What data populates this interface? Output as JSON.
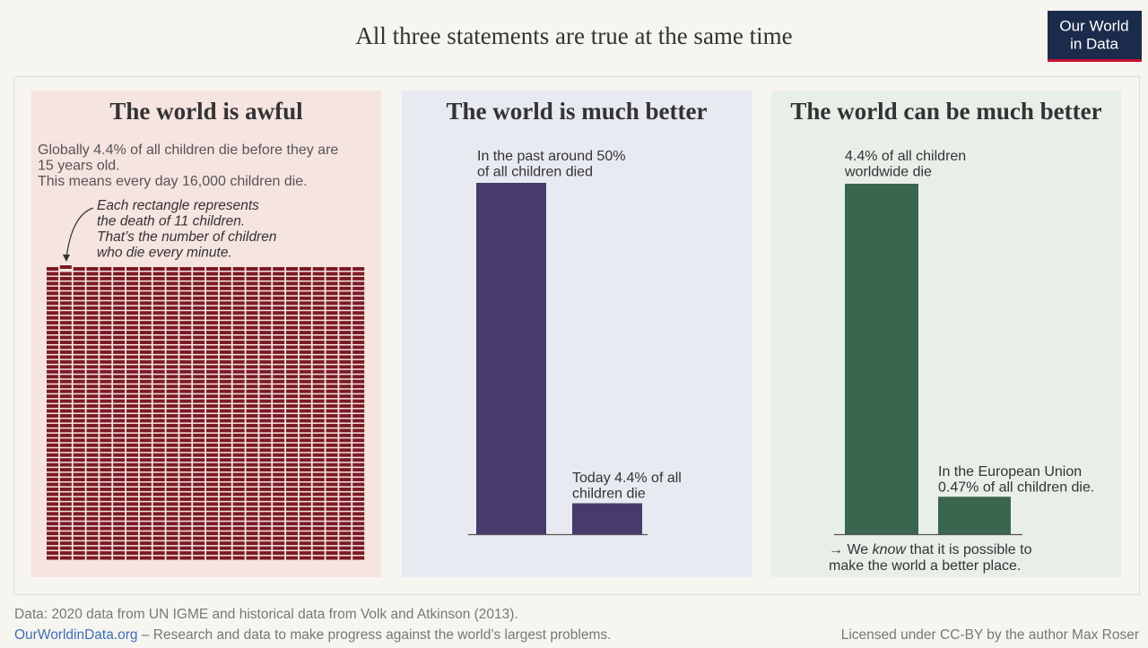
{
  "title": "All three statements are true at the same time",
  "logo": [
    "Our World",
    "in Data"
  ],
  "chart_data": [
    {
      "type": "waffle",
      "title": "The world is awful",
      "text": [
        "Globally 4.4% of all children die before they are",
        "15 years old.",
        "This means every day 16,000 children die."
      ],
      "annotation": [
        "Each rectangle represents",
        "the death of 11 children.",
        "That’s the number of children",
        "who die every minute."
      ],
      "count": 1440,
      "color": "#7b1a24"
    },
    {
      "type": "bar",
      "title": "The world is much better",
      "categories": [
        null,
        null
      ],
      "values": [
        50,
        4.4
      ],
      "ylim": [
        0,
        50
      ],
      "color": "#463b6c",
      "annotations": [
        [
          "In the past around 50%",
          "of all children died"
        ],
        [
          "Today 4.4% of all",
          "children die"
        ]
      ]
    },
    {
      "type": "bar",
      "title": "The world can be much better",
      "categories": [
        null,
        null
      ],
      "values": [
        4.4,
        0.47
      ],
      "ylim": [
        0,
        4.4
      ],
      "color": "#3a6650",
      "annotations": [
        [
          "4.4% of all children",
          "worldwide die"
        ],
        [
          "In the European Union",
          "0.47% of all children die."
        ]
      ],
      "note": [
        [
          "→ We ",
          "know",
          " that it is possible to"
        ],
        "make the world a better place."
      ]
    }
  ],
  "footer": {
    "source": "Data: 2020 data from UN IGME and historical data from Volk and Atkinson (2013).",
    "site": "OurWorldinData.org",
    "tagline": " – Research and data to make progress against the world’s largest problems.",
    "license": "Licensed under CC-BY by the author Max Roser"
  }
}
